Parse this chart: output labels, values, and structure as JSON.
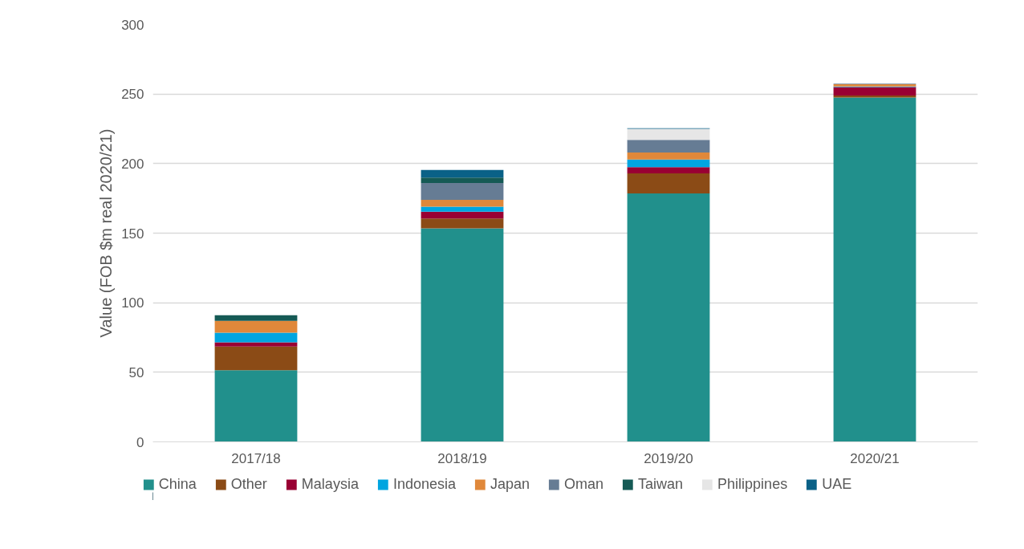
{
  "chart_data": {
    "type": "bar",
    "stacked": true,
    "ylabel": "Value (FOB $m real 2020/21)",
    "categories": [
      "2017/18",
      "2018/19",
      "2019/20",
      "2020/21"
    ],
    "ylim": [
      0,
      300
    ],
    "yticks": [
      0,
      50,
      100,
      150,
      200,
      250,
      300
    ],
    "grid": "y",
    "legend": "bottom",
    "series": [
      {
        "name": "China",
        "color": "#21908c",
        "values": [
          51.5,
          153.5,
          178.5,
          247.5
        ]
      },
      {
        "name": "Other",
        "color": "#8b4b16",
        "values": [
          17,
          7,
          14.5,
          1.5
        ]
      },
      {
        "name": "Malaysia",
        "color": "#990033",
        "values": [
          3,
          5,
          4.5,
          6
        ]
      },
      {
        "name": "Indonesia",
        "color": "#00a5e0",
        "values": [
          7,
          3.5,
          5.5,
          0.5
        ]
      },
      {
        "name": "Japan",
        "color": "#e0883a",
        "values": [
          8.5,
          5,
          5,
          1.5
        ]
      },
      {
        "name": "Oman",
        "color": "#667c94",
        "values": [
          null,
          12,
          9,
          0.5
        ]
      },
      {
        "name": "Taiwan",
        "color": "#155a55",
        "values": [
          4,
          4,
          null,
          null
        ]
      },
      {
        "name": "Philippines",
        "color": "#e6e6e6",
        "values": [
          null,
          null,
          8,
          null
        ]
      },
      {
        "name": "UAE",
        "color": "#0a6187",
        "values": [
          null,
          5.5,
          0.5,
          null
        ]
      }
    ]
  }
}
